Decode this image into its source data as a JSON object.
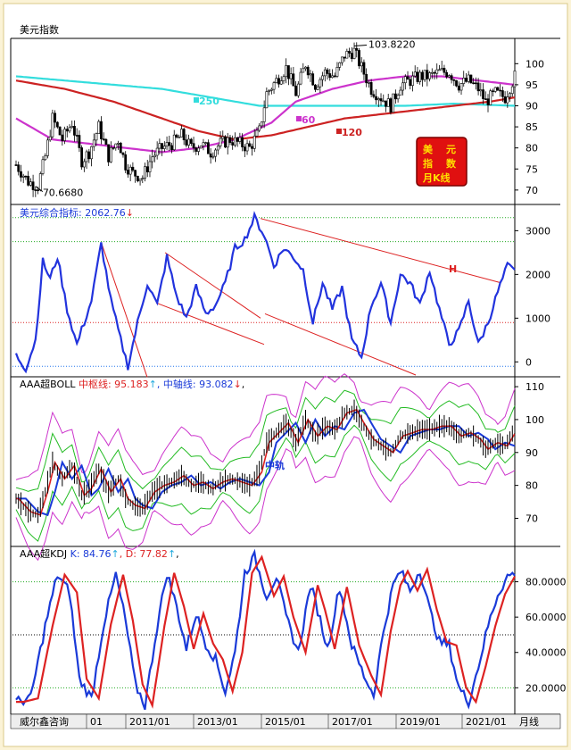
{
  "chart_data": [
    {
      "type": "candlestick",
      "title": "美元指数",
      "ylim": [
        67,
        106
      ],
      "yticks": [
        70,
        75,
        80,
        85,
        90,
        95,
        100
      ],
      "annotations": {
        "high": "103.8220",
        "low": "70.6680"
      },
      "legend": [
        {
          "label": "MA250",
          "color": "#33dddd"
        },
        {
          "label": "MA60",
          "color": "#cc33cc"
        },
        {
          "label": "MA120",
          "color": "#cc2222"
        }
      ],
      "stamp": [
        "美",
        "元",
        "指",
        "数",
        "月K线"
      ],
      "close_path": [
        [
          0,
          76
        ],
        [
          5,
          72
        ],
        [
          9,
          71
        ],
        [
          12,
          78
        ],
        [
          15,
          87
        ],
        [
          19,
          82
        ],
        [
          23,
          86
        ],
        [
          27,
          77
        ],
        [
          30,
          79
        ],
        [
          34,
          85
        ],
        [
          38,
          78
        ],
        [
          42,
          82
        ],
        [
          45,
          76
        ],
        [
          48,
          74
        ],
        [
          52,
          73
        ],
        [
          56,
          78
        ],
        [
          60,
          80
        ],
        [
          64,
          81
        ],
        [
          68,
          83
        ],
        [
          72,
          80
        ],
        [
          76,
          81
        ],
        [
          80,
          79
        ],
        [
          84,
          81
        ],
        [
          88,
          82
        ],
        [
          92,
          81
        ],
        [
          96,
          80
        ],
        [
          100,
          84
        ],
        [
          103,
          93
        ],
        [
          107,
          96
        ],
        [
          111,
          99
        ],
        [
          115,
          93
        ],
        [
          119,
          100
        ],
        [
          123,
          95
        ],
        [
          127,
          98
        ],
        [
          131,
          97
        ],
        [
          135,
          102
        ],
        [
          139,
          103
        ],
        [
          142,
          99
        ],
        [
          146,
          94
        ],
        [
          150,
          92
        ],
        [
          154,
          90
        ],
        [
          158,
          95
        ],
        [
          162,
          96
        ],
        [
          166,
          97
        ],
        [
          170,
          97
        ],
        [
          174,
          98
        ],
        [
          178,
          98
        ],
        [
          182,
          95
        ],
        [
          186,
          96
        ],
        [
          190,
          94
        ],
        [
          193,
          91
        ],
        [
          197,
          93
        ],
        [
          201,
          92
        ],
        [
          205,
          97
        ]
      ],
      "ma_series": [
        {
          "name": "MA250",
          "color": "#33dddd",
          "points": [
            [
              0,
              97
            ],
            [
              20,
              96
            ],
            [
              40,
              95
            ],
            [
              60,
              94
            ],
            [
              80,
              92
            ],
            [
              100,
              90
            ],
            [
              120,
              90
            ],
            [
              140,
              90
            ],
            [
              160,
              90
            ],
            [
              180,
              90.5
            ],
            [
              205,
              90
            ]
          ]
        },
        {
          "name": "MA60",
          "color": "#cc33cc",
          "points": [
            [
              0,
              87
            ],
            [
              15,
              82
            ],
            [
              30,
              81
            ],
            [
              45,
              80
            ],
            [
              60,
              79
            ],
            [
              75,
              80
            ],
            [
              90,
              82
            ],
            [
              105,
              86
            ],
            [
              115,
              91
            ],
            [
              130,
              94
            ],
            [
              145,
              96
            ],
            [
              160,
              97
            ],
            [
              175,
              97
            ],
            [
              190,
              96
            ],
            [
              205,
              95
            ]
          ]
        },
        {
          "name": "MA120",
          "color": "#cc2222",
          "points": [
            [
              0,
              96
            ],
            [
              20,
              94
            ],
            [
              40,
              91
            ],
            [
              60,
              87
            ],
            [
              75,
              84
            ],
            [
              90,
              82
            ],
            [
              105,
              83
            ],
            [
              120,
              85
            ],
            [
              135,
              87
            ],
            [
              150,
              88
            ],
            [
              165,
              89
            ],
            [
              180,
              90
            ],
            [
              195,
              91
            ],
            [
              205,
              92
            ]
          ]
        }
      ]
    },
    {
      "type": "line",
      "title": "美元综合指标",
      "value_label": "2062.76",
      "arrow": "↓",
      "ylim": [
        -300,
        3600
      ],
      "yticks": [
        0,
        1000,
        2000,
        3000
      ],
      "gridlines": [
        -100,
        3300,
        2750,
        900
      ],
      "annotation_h": "H",
      "series": [
        {
          "name": "美元综合指标",
          "color": "#2233dd",
          "points": [
            [
              0,
              150
            ],
            [
              4,
              -150
            ],
            [
              8,
              500
            ],
            [
              11,
              2300
            ],
            [
              14,
              1900
            ],
            [
              17,
              2400
            ],
            [
              21,
              1200
            ],
            [
              25,
              400
            ],
            [
              28,
              900
            ],
            [
              31,
              1400
            ],
            [
              35,
              2700
            ],
            [
              39,
              1400
            ],
            [
              43,
              500
            ],
            [
              46,
              -100
            ],
            [
              50,
              900
            ],
            [
              54,
              1800
            ],
            [
              58,
              1300
            ],
            [
              62,
              2400
            ],
            [
              66,
              1500
            ],
            [
              70,
              1000
            ],
            [
              74,
              1700
            ],
            [
              78,
              1100
            ],
            [
              82,
              1300
            ],
            [
              86,
              1800
            ],
            [
              90,
              2600
            ],
            [
              94,
              2800
            ],
            [
              98,
              3300
            ],
            [
              102,
              2900
            ],
            [
              106,
              2200
            ],
            [
              110,
              2600
            ],
            [
              114,
              2400
            ],
            [
              118,
              2100
            ],
            [
              122,
              900
            ],
            [
              126,
              1800
            ],
            [
              130,
              1200
            ],
            [
              134,
              1700
            ],
            [
              138,
              500
            ],
            [
              142,
              100
            ],
            [
              146,
              1300
            ],
            [
              150,
              1800
            ],
            [
              154,
              900
            ],
            [
              158,
              2000
            ],
            [
              162,
              1800
            ],
            [
              166,
              1300
            ],
            [
              170,
              2100
            ],
            [
              174,
              1200
            ],
            [
              178,
              400
            ],
            [
              182,
              700
            ],
            [
              186,
              1400
            ],
            [
              190,
              400
            ],
            [
              194,
              900
            ],
            [
              198,
              1600
            ],
            [
              202,
              2200
            ],
            [
              205,
              2060
            ]
          ]
        }
      ]
    },
    {
      "type": "line",
      "title": "AAA超BOLL",
      "mid_label": "中枢线:",
      "mid_value": "95.183",
      "mid_arrow": "↑",
      "axis_label": "中轴线:",
      "axis_value": "93.082",
      "axis_arrow": "↓",
      "ylim": [
        62,
        113
      ],
      "yticks": [
        70,
        80,
        90,
        100,
        110
      ],
      "annotation": "中轨"
    },
    {
      "type": "line",
      "title": "AAA超KDJ",
      "k_label": "K:",
      "k_value": "84.76",
      "k_arrow": "↑",
      "d_label": "D:",
      "d_value": "77.82",
      "d_arrow": "↑",
      "ylim": [
        5,
        100
      ],
      "yticks": [
        "20.0000",
        "40.0000",
        "60.0000",
        "80.0000"
      ],
      "ytick_values": [
        20,
        40,
        60,
        80
      ],
      "gridlines": [
        20,
        50,
        80
      ]
    }
  ],
  "footer": {
    "brand": "威尔鑫咨询",
    "x_labels": [
      "01",
      "2011/01",
      "2013/01",
      "2015/01",
      "2017/01",
      "2019/01",
      "2021/01"
    ],
    "period": "月线"
  }
}
